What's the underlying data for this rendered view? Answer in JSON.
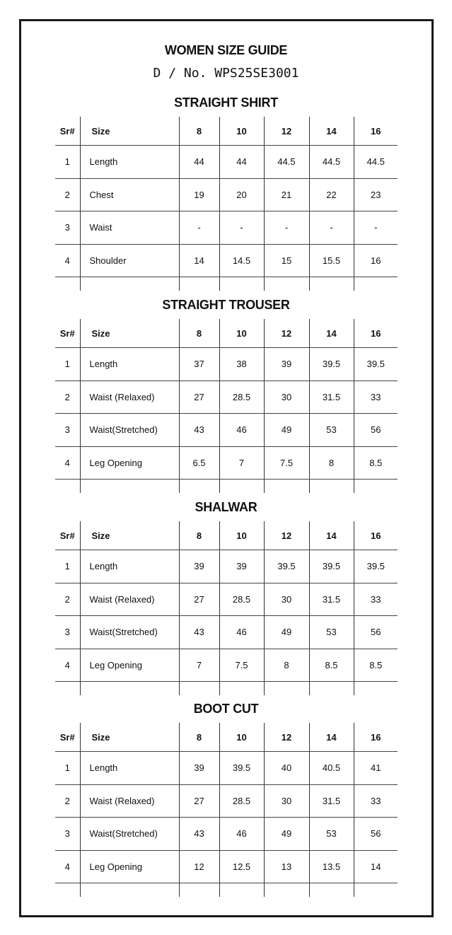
{
  "title": "WOMEN SIZE GUIDE",
  "design_no": "D / No. WPS25SE3001",
  "header": {
    "sr": "Sr#",
    "size": "Size",
    "sizes": [
      "8",
      "10",
      "12",
      "14",
      "16"
    ]
  },
  "sections": [
    {
      "title": "STRAIGHT SHIRT",
      "rows": [
        {
          "sr": "1",
          "label": "Length",
          "values": [
            "44",
            "44",
            "44.5",
            "44.5",
            "44.5"
          ]
        },
        {
          "sr": "2",
          "label": "Chest",
          "values": [
            "19",
            "20",
            "21",
            "22",
            "23"
          ]
        },
        {
          "sr": "3",
          "label": "Waist",
          "values": [
            "-",
            "-",
            "-",
            "-",
            "-"
          ]
        },
        {
          "sr": "4",
          "label": "Shoulder",
          "values": [
            "14",
            "14.5",
            "15",
            "15.5",
            "16"
          ]
        }
      ]
    },
    {
      "title": "STRAIGHT TROUSER",
      "rows": [
        {
          "sr": "1",
          "label": "Length",
          "values": [
            "37",
            "38",
            "39",
            "39.5",
            "39.5"
          ]
        },
        {
          "sr": "2",
          "label": "Waist (Relaxed)",
          "values": [
            "27",
            "28.5",
            "30",
            "31.5",
            "33"
          ]
        },
        {
          "sr": "3",
          "label": "Waist(Stretched)",
          "values": [
            "43",
            "46",
            "49",
            "53",
            "56"
          ]
        },
        {
          "sr": "4",
          "label": "Leg Opening",
          "values": [
            "6.5",
            "7",
            "7.5",
            "8",
            "8.5"
          ]
        }
      ]
    },
    {
      "title": "SHALWAR",
      "rows": [
        {
          "sr": "1",
          "label": "Length",
          "values": [
            "39",
            "39",
            "39.5",
            "39.5",
            "39.5"
          ]
        },
        {
          "sr": "2",
          "label": "Waist (Relaxed)",
          "values": [
            "27",
            "28.5",
            "30",
            "31.5",
            "33"
          ]
        },
        {
          "sr": "3",
          "label": "Waist(Stretched)",
          "values": [
            "43",
            "46",
            "49",
            "53",
            "56"
          ]
        },
        {
          "sr": "4",
          "label": "Leg Opening",
          "values": [
            "7",
            "7.5",
            "8",
            "8.5",
            "8.5"
          ]
        }
      ]
    },
    {
      "title": "BOOT CUT",
      "rows": [
        {
          "sr": "1",
          "label": "Length",
          "values": [
            "39",
            "39.5",
            "40",
            "40.5",
            "41"
          ]
        },
        {
          "sr": "2",
          "label": "Waist (Relaxed)",
          "values": [
            "27",
            "28.5",
            "30",
            "31.5",
            "33"
          ]
        },
        {
          "sr": "3",
          "label": "Waist(Stretched)",
          "values": [
            "43",
            "46",
            "49",
            "53",
            "56"
          ]
        },
        {
          "sr": "4",
          "label": "Leg Opening",
          "values": [
            "12",
            "12.5",
            "13",
            "13.5",
            "14"
          ]
        }
      ]
    }
  ]
}
